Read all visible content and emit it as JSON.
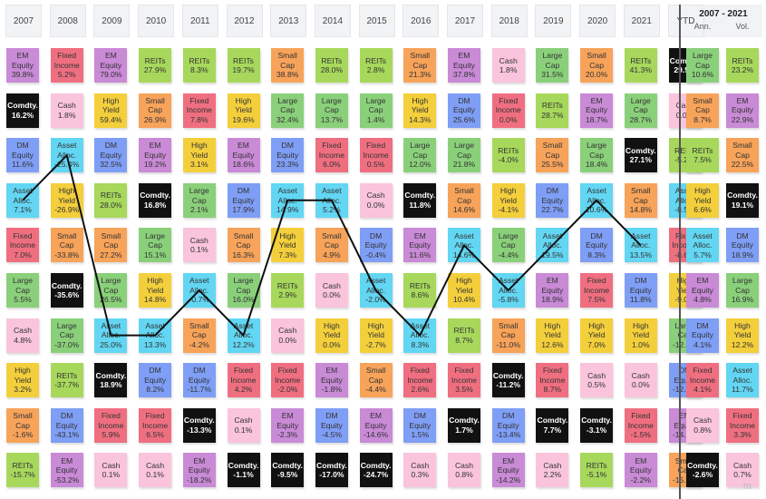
{
  "chart_data": {
    "type": "table",
    "years": [
      "2007",
      "2008",
      "2009",
      "2010",
      "2011",
      "2012",
      "2013",
      "2014",
      "2015",
      "2016",
      "2017",
      "2018",
      "2019",
      "2020",
      "2021",
      "YTD"
    ],
    "annualized_header": "2007 - 2021",
    "annualized_subheaders": [
      "Ann.",
      "Vol."
    ],
    "asset_colors": {
      "EM Equity": "#c98ad6",
      "Fixed Income": "#ef6f80",
      "REITs": "#a7d85c",
      "Small Cap": "#f7a35a",
      "Cash": "#f9c4dc",
      "Large Cap": "#8ad07a",
      "Comdty.": "#111111",
      "High Yield": "#f4cf3c",
      "DM Equity": "#7f9ef5",
      "Asset Alloc.": "#62d6f2"
    },
    "highlighted_series": "Asset Alloc.",
    "columns": [
      {
        "year": "2007",
        "cells": [
          {
            "asset": "EM Equity",
            "value": "39.8%"
          },
          {
            "asset": "Comdty.",
            "value": "16.2%"
          },
          {
            "asset": "DM Equity",
            "value": "11.6%"
          },
          {
            "asset": "Asset Alloc.",
            "value": "7.1%"
          },
          {
            "asset": "Fixed Income",
            "value": "7.0%"
          },
          {
            "asset": "Large Cap",
            "value": "5.5%"
          },
          {
            "asset": "Cash",
            "value": "4.8%"
          },
          {
            "asset": "High Yield",
            "value": "3.2%"
          },
          {
            "asset": "Small Cap",
            "value": "-1.6%"
          },
          {
            "asset": "REITs",
            "value": "-15.7%"
          }
        ]
      },
      {
        "year": "2008",
        "cells": [
          {
            "asset": "Fixed Income",
            "value": "5.2%"
          },
          {
            "asset": "Cash",
            "value": "1.8%"
          },
          {
            "asset": "Asset Alloc.",
            "value": "-25.4%"
          },
          {
            "asset": "High Yield",
            "value": "-26.9%"
          },
          {
            "asset": "Small Cap",
            "value": "-33.8%"
          },
          {
            "asset": "Comdty.",
            "value": "-35.6%"
          },
          {
            "asset": "Large Cap",
            "value": "-37.0%"
          },
          {
            "asset": "REITs",
            "value": "-37.7%"
          },
          {
            "asset": "DM Equity",
            "value": "-43.1%"
          },
          {
            "asset": "EM Equity",
            "value": "-53.2%"
          }
        ]
      },
      {
        "year": "2009",
        "cells": [
          {
            "asset": "EM Equity",
            "value": "79.0%"
          },
          {
            "asset": "High Yield",
            "value": "59.4%"
          },
          {
            "asset": "DM Equity",
            "value": "32.5%"
          },
          {
            "asset": "REITs",
            "value": "28.0%"
          },
          {
            "asset": "Small Cap",
            "value": "27.2%"
          },
          {
            "asset": "Large Cap",
            "value": "26.5%"
          },
          {
            "asset": "Asset Alloc.",
            "value": "25.0%"
          },
          {
            "asset": "Comdty.",
            "value": "18.9%"
          },
          {
            "asset": "Fixed Income",
            "value": "5.9%"
          },
          {
            "asset": "Cash",
            "value": "0.1%"
          }
        ]
      },
      {
        "year": "2010",
        "cells": [
          {
            "asset": "REITs",
            "value": "27.9%"
          },
          {
            "asset": "Small Cap",
            "value": "26.9%"
          },
          {
            "asset": "EM Equity",
            "value": "19.2%"
          },
          {
            "asset": "Comdty.",
            "value": "16.8%"
          },
          {
            "asset": "Large Cap",
            "value": "15.1%"
          },
          {
            "asset": "High Yield",
            "value": "14.8%"
          },
          {
            "asset": "Asset Alloc.",
            "value": "13.3%"
          },
          {
            "asset": "DM Equity",
            "value": "8.2%"
          },
          {
            "asset": "Fixed Income",
            "value": "6.5%"
          },
          {
            "asset": "Cash",
            "value": "0.1%"
          }
        ]
      },
      {
        "year": "2011",
        "cells": [
          {
            "asset": "REITs",
            "value": "8.3%"
          },
          {
            "asset": "Fixed Income",
            "value": "7.8%"
          },
          {
            "asset": "High Yield",
            "value": "3.1%"
          },
          {
            "asset": "Large Cap",
            "value": "2.1%"
          },
          {
            "asset": "Cash",
            "value": "0.1%"
          },
          {
            "asset": "Asset Alloc.",
            "value": "-0.7%"
          },
          {
            "asset": "Small Cap",
            "value": "-4.2%"
          },
          {
            "asset": "DM Equity",
            "value": "-11.7%"
          },
          {
            "asset": "Comdty.",
            "value": "-13.3%"
          },
          {
            "asset": "EM Equity",
            "value": "-18.2%"
          }
        ]
      },
      {
        "year": "2012",
        "cells": [
          {
            "asset": "REITs",
            "value": "19.7%"
          },
          {
            "asset": "High Yield",
            "value": "19.6%"
          },
          {
            "asset": "EM Equity",
            "value": "18.6%"
          },
          {
            "asset": "DM Equity",
            "value": "17.9%"
          },
          {
            "asset": "Small Cap",
            "value": "16.3%"
          },
          {
            "asset": "Large Cap",
            "value": "16.0%"
          },
          {
            "asset": "Asset Alloc.",
            "value": "12.2%"
          },
          {
            "asset": "Fixed Income",
            "value": "4.2%"
          },
          {
            "asset": "Cash",
            "value": "0.1%"
          },
          {
            "asset": "Comdty.",
            "value": "-1.1%"
          }
        ]
      },
      {
        "year": "2013",
        "cells": [
          {
            "asset": "Small Cap",
            "value": "38.8%"
          },
          {
            "asset": "Large Cap",
            "value": "32.4%"
          },
          {
            "asset": "DM Equity",
            "value": "23.3%"
          },
          {
            "asset": "Asset Alloc.",
            "value": "14.9%"
          },
          {
            "asset": "High Yield",
            "value": "7.3%"
          },
          {
            "asset": "REITs",
            "value": "2.9%"
          },
          {
            "asset": "Cash",
            "value": "0.0%"
          },
          {
            "asset": "Fixed Income",
            "value": "-2.0%"
          },
          {
            "asset": "EM Equity",
            "value": "-2.3%"
          },
          {
            "asset": "Comdty.",
            "value": "-9.5%"
          }
        ]
      },
      {
        "year": "2014",
        "cells": [
          {
            "asset": "REITs",
            "value": "28.0%"
          },
          {
            "asset": "Large Cap",
            "value": "13.7%"
          },
          {
            "asset": "Fixed Income",
            "value": "6.0%"
          },
          {
            "asset": "Asset Alloc.",
            "value": "5.2%"
          },
          {
            "asset": "Small Cap",
            "value": "4.9%"
          },
          {
            "asset": "Cash",
            "value": "0.0%"
          },
          {
            "asset": "High Yield",
            "value": "0.0%"
          },
          {
            "asset": "EM Equity",
            "value": "-1.8%"
          },
          {
            "asset": "DM Equity",
            "value": "-4.5%"
          },
          {
            "asset": "Comdty.",
            "value": "-17.0%"
          }
        ]
      },
      {
        "year": "2015",
        "cells": [
          {
            "asset": "REITs",
            "value": "2.8%"
          },
          {
            "asset": "Large Cap",
            "value": "1.4%"
          },
          {
            "asset": "Fixed Income",
            "value": "0.5%"
          },
          {
            "asset": "Cash",
            "value": "0.0%"
          },
          {
            "asset": "DM Equity",
            "value": "-0.4%"
          },
          {
            "asset": "Asset Alloc.",
            "value": "-2.0%"
          },
          {
            "asset": "High Yield",
            "value": "-2.7%"
          },
          {
            "asset": "Small Cap",
            "value": "-4.4%"
          },
          {
            "asset": "EM Equity",
            "value": "-14.6%"
          },
          {
            "asset": "Comdty.",
            "value": "-24.7%"
          }
        ]
      },
      {
        "year": "2016",
        "cells": [
          {
            "asset": "Small Cap",
            "value": "21.3%"
          },
          {
            "asset": "High Yield",
            "value": "14.3%"
          },
          {
            "asset": "Large Cap",
            "value": "12.0%"
          },
          {
            "asset": "Comdty.",
            "value": "11.8%"
          },
          {
            "asset": "EM Equity",
            "value": "11.6%"
          },
          {
            "asset": "REITs",
            "value": "8.6%"
          },
          {
            "asset": "Asset Alloc.",
            "value": "8.3%"
          },
          {
            "asset": "Fixed Income",
            "value": "2.6%"
          },
          {
            "asset": "DM Equity",
            "value": "1.5%"
          },
          {
            "asset": "Cash",
            "value": "0.3%"
          }
        ]
      },
      {
        "year": "2017",
        "cells": [
          {
            "asset": "EM Equity",
            "value": "37.8%"
          },
          {
            "asset": "DM Equity",
            "value": "25.6%"
          },
          {
            "asset": "Large Cap",
            "value": "21.8%"
          },
          {
            "asset": "Small Cap",
            "value": "14.6%"
          },
          {
            "asset": "Asset Alloc.",
            "value": "14.6%"
          },
          {
            "asset": "High Yield",
            "value": "10.4%"
          },
          {
            "asset": "REITs",
            "value": "8.7%"
          },
          {
            "asset": "Fixed Income",
            "value": "3.5%"
          },
          {
            "asset": "Comdty.",
            "value": "1.7%"
          },
          {
            "asset": "Cash",
            "value": "0.8%"
          }
        ]
      },
      {
        "year": "2018",
        "cells": [
          {
            "asset": "Cash",
            "value": "1.8%"
          },
          {
            "asset": "Fixed Income",
            "value": "0.0%"
          },
          {
            "asset": "REITs",
            "value": "-4.0%"
          },
          {
            "asset": "High Yield",
            "value": "-4.1%"
          },
          {
            "asset": "Large Cap",
            "value": "-4.4%"
          },
          {
            "asset": "Asset Alloc.",
            "value": "-5.8%"
          },
          {
            "asset": "Small Cap",
            "value": "-11.0%"
          },
          {
            "asset": "Comdty.",
            "value": "-11.2%"
          },
          {
            "asset": "DM Equity",
            "value": "-13.4%"
          },
          {
            "asset": "EM Equity",
            "value": "-14.2%"
          }
        ]
      },
      {
        "year": "2019",
        "cells": [
          {
            "asset": "Large Cap",
            "value": "31.5%"
          },
          {
            "asset": "REITs",
            "value": "28.7%"
          },
          {
            "asset": "Small Cap",
            "value": "25.5%"
          },
          {
            "asset": "DM Equity",
            "value": "22.7%"
          },
          {
            "asset": "Asset Alloc.",
            "value": "19.5%"
          },
          {
            "asset": "EM Equity",
            "value": "18.9%"
          },
          {
            "asset": "High Yield",
            "value": "12.6%"
          },
          {
            "asset": "Fixed Income",
            "value": "8.7%"
          },
          {
            "asset": "Comdty.",
            "value": "7.7%"
          },
          {
            "asset": "Cash",
            "value": "2.2%"
          }
        ]
      },
      {
        "year": "2020",
        "cells": [
          {
            "asset": "Small Cap",
            "value": "20.0%"
          },
          {
            "asset": "EM Equity",
            "value": "18.7%"
          },
          {
            "asset": "Large Cap",
            "value": "18.4%"
          },
          {
            "asset": "Asset Alloc.",
            "value": "10.6%"
          },
          {
            "asset": "DM Equity",
            "value": "8.3%"
          },
          {
            "asset": "Fixed Income",
            "value": "7.5%"
          },
          {
            "asset": "High Yield",
            "value": "7.0%"
          },
          {
            "asset": "Cash",
            "value": "0.5%"
          },
          {
            "asset": "Comdty.",
            "value": "-3.1%"
          },
          {
            "asset": "REITs",
            "value": "-5.1%"
          }
        ]
      },
      {
        "year": "2021",
        "cells": [
          {
            "asset": "REITs",
            "value": "41.3%"
          },
          {
            "asset": "Large Cap",
            "value": "28.7%"
          },
          {
            "asset": "Comdty.",
            "value": "27.1%"
          },
          {
            "asset": "Small Cap",
            "value": "14.8%"
          },
          {
            "asset": "Asset Alloc.",
            "value": "13.5%"
          },
          {
            "asset": "DM Equity",
            "value": "11.8%"
          },
          {
            "asset": "High Yield",
            "value": "1.0%"
          },
          {
            "asset": "Cash",
            "value": "0.0%"
          },
          {
            "asset": "Fixed Income",
            "value": "-1.5%"
          },
          {
            "asset": "EM Equity",
            "value": "-2.2%"
          }
        ]
      },
      {
        "year": "YTD",
        "cells": [
          {
            "asset": "Comdty.",
            "value": "29.5%"
          },
          {
            "asset": "Cash",
            "value": "0.0%"
          },
          {
            "asset": "REITs",
            "value": "-5.2%"
          },
          {
            "asset": "Asset Alloc.",
            "value": "-8.5%"
          },
          {
            "asset": "Fixed Income",
            "value": "-8.6%"
          },
          {
            "asset": "High Yield",
            "value": "-9.0%"
          },
          {
            "asset": "Large Cap",
            "value": "-12.0%"
          },
          {
            "asset": "DM Equity",
            "value": "-12.5%"
          },
          {
            "asset": "EM Equity",
            "value": "-14.3%"
          },
          {
            "asset": "Small Cap",
            "value": "-15.5%"
          }
        ]
      }
    ],
    "annualized": {
      "ann": [
        {
          "asset": "Large Cap",
          "value": "10.6%"
        },
        {
          "asset": "Small Cap",
          "value": "8.7%"
        },
        {
          "asset": "REITs",
          "value": "7.5%"
        },
        {
          "asset": "High Yield",
          "value": "6.6%"
        },
        {
          "asset": "Asset Alloc.",
          "value": "5.7%"
        },
        {
          "asset": "EM Equity",
          "value": "4.8%"
        },
        {
          "asset": "DM Equity",
          "value": "4.1%"
        },
        {
          "asset": "Fixed Income",
          "value": "4.1%"
        },
        {
          "asset": "Cash",
          "value": "0.8%"
        },
        {
          "asset": "Comdty.",
          "value": "-2.6%"
        }
      ],
      "vol": [
        {
          "asset": "REITs",
          "value": "23.2%"
        },
        {
          "asset": "EM Equity",
          "value": "22.9%"
        },
        {
          "asset": "Small Cap",
          "value": "22.5%"
        },
        {
          "asset": "Comdty.",
          "value": "19.1%"
        },
        {
          "asset": "DM Equity",
          "value": "18.9%"
        },
        {
          "asset": "Large Cap",
          "value": "16.9%"
        },
        {
          "asset": "High Yield",
          "value": "12.2%"
        },
        {
          "asset": "Asset Alloc.",
          "value": "11.7%"
        },
        {
          "asset": "Fixed Income",
          "value": "3.3%"
        },
        {
          "asset": "Cash",
          "value": "0.7%"
        }
      ]
    },
    "watermark": "m"
  }
}
